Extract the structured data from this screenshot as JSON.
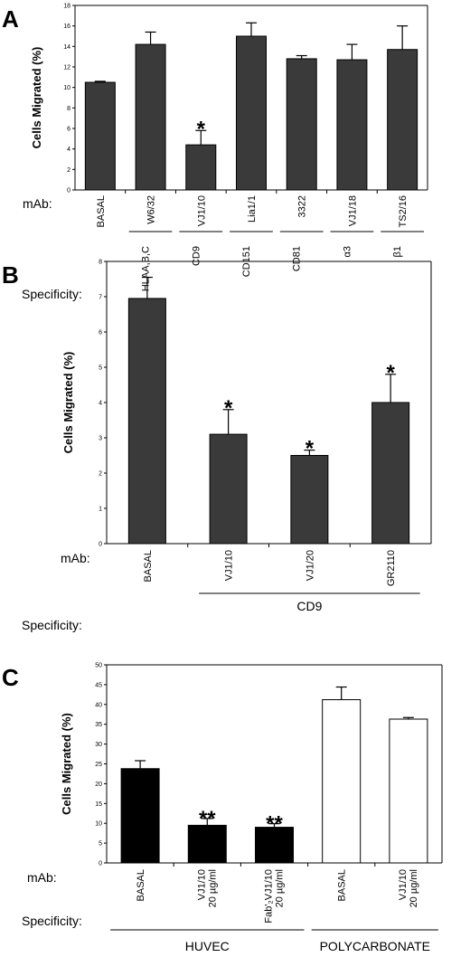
{
  "chart_data": [
    {
      "type": "bar",
      "panel": "A",
      "ylabel": "Cells Migrated (%)",
      "ylim": [
        0,
        18
      ],
      "yticks": [
        0,
        2,
        4,
        6,
        8,
        10,
        12,
        14,
        16,
        18
      ],
      "row_labels": {
        "mab": "mAb:",
        "specificity": "Specificity:"
      },
      "categories": [
        "BASAL",
        "W6/32",
        "VJ1/10",
        "Lia1/1",
        "3322",
        "VJ1/18",
        "TS2/16"
      ],
      "specificity": [
        "",
        "HLAA,B,C",
        "CD9",
        "CD151",
        "CD81",
        "α3",
        "β1"
      ],
      "values": [
        10.5,
        14.2,
        4.4,
        15.0,
        12.8,
        12.7,
        13.7
      ],
      "errors": [
        0.1,
        1.2,
        1.4,
        1.3,
        0.3,
        1.5,
        2.3
      ],
      "significance": [
        "",
        "",
        "*",
        "",
        "",
        "",
        ""
      ],
      "bar_color": "#3a3a3a"
    },
    {
      "type": "bar",
      "panel": "B",
      "ylabel": "Cells Migrated (%)",
      "ylim": [
        0,
        8
      ],
      "yticks": [
        0,
        1,
        2,
        3,
        4,
        5,
        6,
        7,
        8
      ],
      "row_labels": {
        "mab": "mAb:",
        "specificity": "Specificity:"
      },
      "categories": [
        "BASAL",
        "VJ1/10",
        "VJ1/20",
        "GR2110"
      ],
      "groups": [
        {
          "label": "CD9",
          "from": 1,
          "to": 3
        }
      ],
      "values": [
        6.95,
        3.1,
        2.5,
        4.0
      ],
      "errors": [
        0.6,
        0.7,
        0.15,
        0.8
      ],
      "significance": [
        "",
        "*",
        "*",
        "*"
      ],
      "bar_color": "#3a3a3a"
    },
    {
      "type": "bar",
      "panel": "C",
      "ylabel": "Cells Migrated (%)",
      "ylim": [
        0,
        50
      ],
      "yticks": [
        0,
        5,
        10,
        15,
        20,
        25,
        30,
        35,
        40,
        45,
        50
      ],
      "row_labels": {
        "mab": "mAb:",
        "specificity": "Specificity:"
      },
      "categories": [
        "BASAL",
        "VJ1/10 20 µg/ml",
        "Fab'₂VJ1/10 20 µg/ml",
        "BASAL",
        "VJ1/10 20 µg/ml"
      ],
      "groups": [
        {
          "label": "HUVEC",
          "from": 0,
          "to": 2
        },
        {
          "label": "POLYCARBONATE",
          "from": 3,
          "to": 4
        }
      ],
      "values": [
        23.8,
        9.5,
        9.0,
        41.2,
        36.3
      ],
      "errors": [
        2.0,
        1.7,
        0.9,
        3.2,
        0.4
      ],
      "significance": [
        "",
        "**",
        "**",
        "",
        ""
      ],
      "bar_fill": [
        "#000000",
        "#000000",
        "#000000",
        "#ffffff",
        "#ffffff"
      ]
    }
  ]
}
